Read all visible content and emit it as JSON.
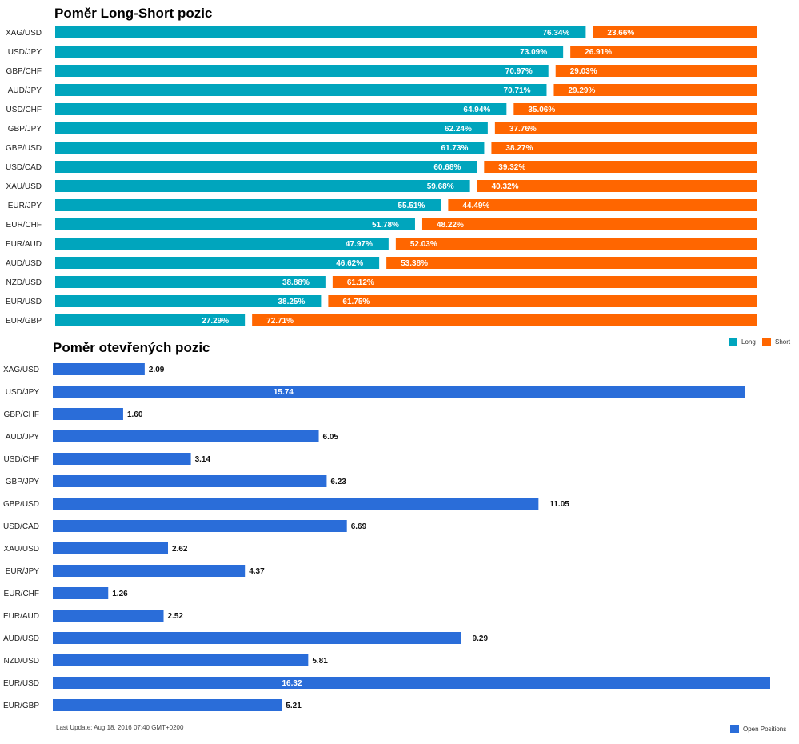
{
  "chart_data": [
    {
      "type": "bar",
      "title": "Poměr Long-Short pozic",
      "orientation": "horizontal",
      "stacked": true,
      "categories": [
        "XAG/USD",
        "USD/JPY",
        "GBP/CHF",
        "AUD/JPY",
        "USD/CHF",
        "GBP/JPY",
        "GBP/USD",
        "USD/CAD",
        "XAU/USD",
        "EUR/JPY",
        "EUR/CHF",
        "EUR/AUD",
        "AUD/USD",
        "NZD/USD",
        "EUR/USD",
        "EUR/GBP"
      ],
      "series": [
        {
          "name": "Long",
          "color": "#00a5bd",
          "values": [
            76.34,
            73.09,
            70.97,
            70.71,
            64.94,
            62.24,
            61.73,
            60.68,
            59.68,
            55.51,
            51.78,
            47.97,
            46.62,
            38.88,
            38.25,
            27.29
          ],
          "labels": [
            "76.34%",
            "73.09%",
            "70.97%",
            "70.71%",
            "64.94%",
            "62.24%",
            "61.73%",
            "60.68%",
            "59.68%",
            "55.51%",
            "51.78%",
            "47.97%",
            "46.62%",
            "38.88%",
            "38.25%",
            "27.29%"
          ]
        },
        {
          "name": "Short",
          "color": "#ff6600",
          "values": [
            23.66,
            26.91,
            29.03,
            29.29,
            35.06,
            37.76,
            38.27,
            39.32,
            40.32,
            44.49,
            48.22,
            52.03,
            53.38,
            61.12,
            61.75,
            72.71
          ],
          "labels": [
            "23.66%",
            "26.91%",
            "29.03%",
            "29.29%",
            "35.06%",
            "37.76%",
            "38.27%",
            "39.32%",
            "40.32%",
            "44.49%",
            "48.22%",
            "52.03%",
            "53.38%",
            "61.12%",
            "61.75%",
            "72.71%"
          ]
        }
      ],
      "xlim": [
        0,
        100
      ],
      "legend": "bottom-right"
    },
    {
      "type": "bar",
      "title": "Poměr otevřených pozic",
      "orientation": "horizontal",
      "categories": [
        "XAG/USD",
        "USD/JPY",
        "GBP/CHF",
        "AUD/JPY",
        "USD/CHF",
        "GBP/JPY",
        "GBP/USD",
        "USD/CAD",
        "XAU/USD",
        "EUR/JPY",
        "EUR/CHF",
        "EUR/AUD",
        "AUD/USD",
        "NZD/USD",
        "EUR/USD",
        "EUR/GBP"
      ],
      "series": [
        {
          "name": "Open Positions",
          "color": "#2a6dd9",
          "values": [
            2.09,
            15.74,
            1.6,
            6.05,
            3.14,
            6.23,
            11.05,
            6.69,
            2.62,
            4.37,
            1.26,
            2.52,
            9.29,
            5.81,
            16.32,
            5.21
          ],
          "labels": [
            "2.09",
            "15.74",
            "1.60",
            "6.05",
            "3.14",
            "6.23",
            "11.05",
            "6.69",
            "2.62",
            "4.37",
            "1.26",
            "2.52",
            "9.29",
            "5.81",
            "16.32",
            "5.21"
          ]
        }
      ],
      "xlim": [
        0,
        16.32
      ],
      "legend": "bottom-right"
    }
  ],
  "footer": {
    "last_update": "Last Update: Aug 18, 2016 07:40 GMT+0200"
  }
}
